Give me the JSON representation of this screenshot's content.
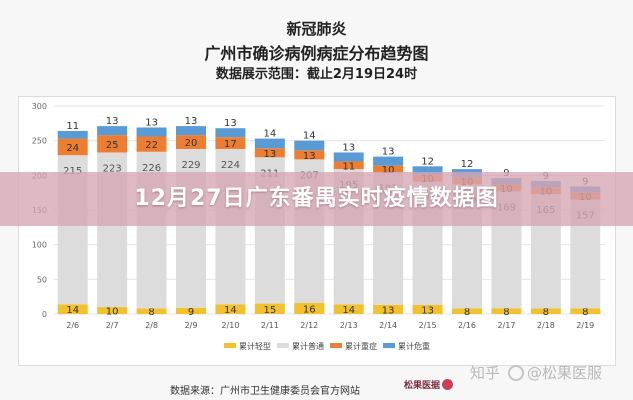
{
  "header": {
    "title1": "新冠肺炎",
    "title2": "广州市确诊病例病症分布趋势图",
    "title3": "数据展示范围：截止2月19日24时"
  },
  "banner": {
    "text": "12月27日广东番禺实时疫情数据图"
  },
  "footer": {
    "source": "数据来源：广州市卫生健康委员会官方网站",
    "brand": "松果医据",
    "watermark_a": "知乎",
    "watermark_b": "@松果医服"
  },
  "colors": {
    "light": "#f2c12e",
    "common": "#dcdcdc",
    "severe": "#ed7d31",
    "critical": "#5b9bd5"
  },
  "chart_data": {
    "type": "bar",
    "stacked": true,
    "categories": [
      "2/6",
      "2/7",
      "2/8",
      "2/9",
      "2/10",
      "2/11",
      "2/12",
      "2/13",
      "2/14",
      "2/15",
      "2/16",
      "2/17",
      "2/18",
      "2/19"
    ],
    "series": [
      {
        "name": "累计轻型",
        "values": [
          14,
          10,
          8,
          9,
          14,
          15,
          16,
          14,
          13,
          13,
          8,
          8,
          8,
          8
        ]
      },
      {
        "name": "累计普通",
        "values": [
          215,
          223,
          226,
          229,
          224,
          211,
          207,
          195,
          191,
          178,
          179,
          169,
          165,
          157
        ]
      },
      {
        "name": "累计重症",
        "values": [
          24,
          25,
          22,
          20,
          17,
          13,
          13,
          11,
          10,
          10,
          10,
          10,
          10,
          10
        ]
      },
      {
        "name": "累计危重",
        "values": [
          11,
          13,
          13,
          13,
          13,
          14,
          14,
          13,
          13,
          12,
          12,
          9,
          9,
          9
        ]
      }
    ],
    "yticks": [
      0,
      50,
      100,
      150,
      200,
      250,
      300
    ],
    "ylim": [
      0,
      300
    ],
    "grid": true,
    "legend": "bottom"
  }
}
